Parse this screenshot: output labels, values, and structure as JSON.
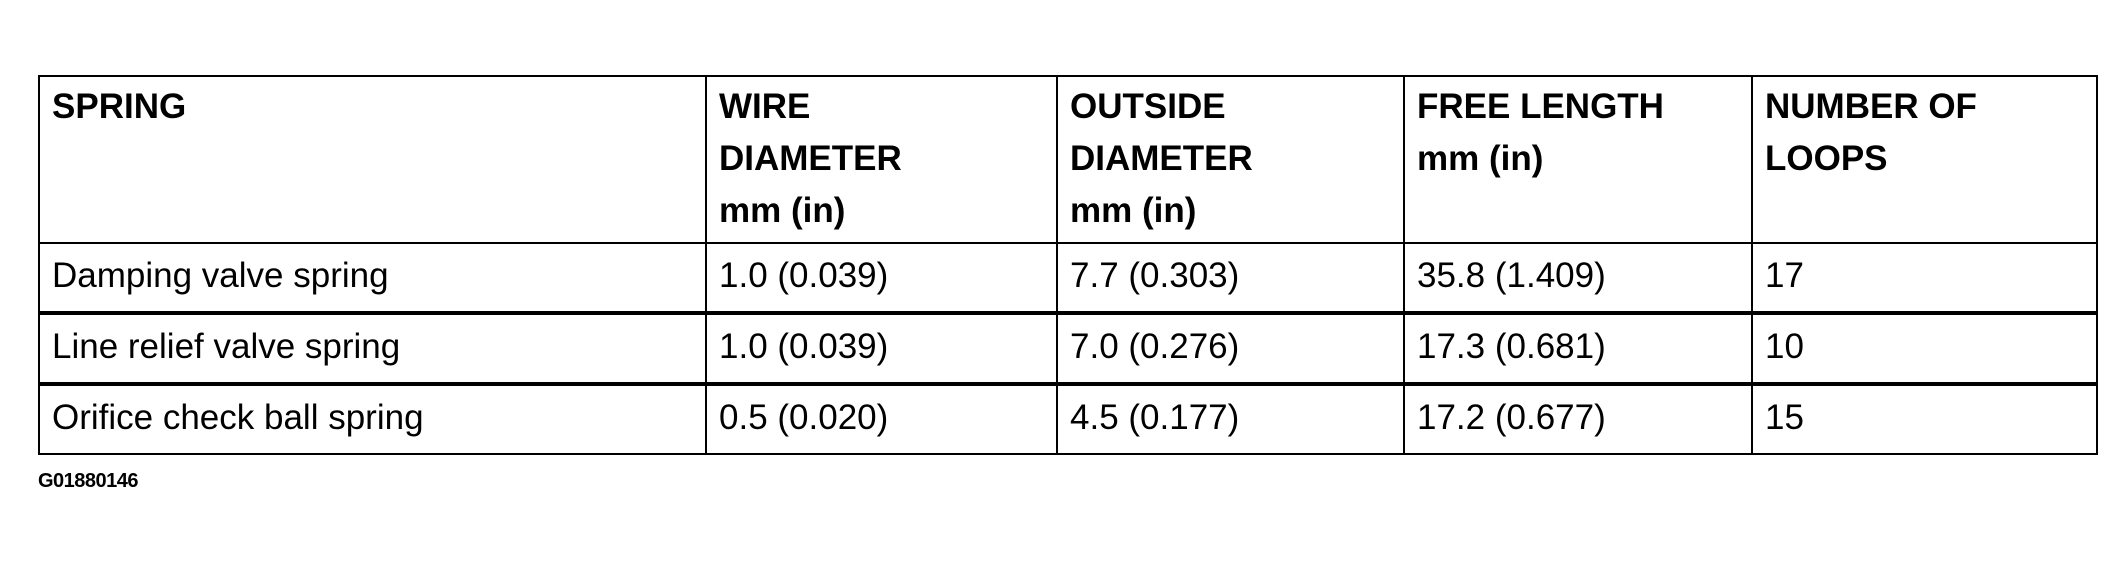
{
  "table": {
    "headers": [
      [
        "SPRING"
      ],
      [
        "WIRE",
        "DIAMETER",
        "mm (in)"
      ],
      [
        "OUTSIDE",
        "DIAMETER",
        "mm (in)"
      ],
      [
        "FREE LENGTH",
        "mm (in)"
      ],
      [
        "NUMBER OF",
        "LOOPS"
      ]
    ],
    "rows": [
      [
        "Damping valve spring",
        "1.0 (0.039)",
        "7.7 (0.303)",
        "35.8 (1.409)",
        "17"
      ],
      [
        "Line relief valve spring",
        "1.0 (0.039)",
        "7.0 (0.276)",
        "17.3 (0.681)",
        "10"
      ],
      [
        "Orifice check ball spring",
        "0.5 (0.020)",
        "4.5 (0.177)",
        "17.2 (0.677)",
        "15"
      ]
    ]
  },
  "caption": "G01880146"
}
